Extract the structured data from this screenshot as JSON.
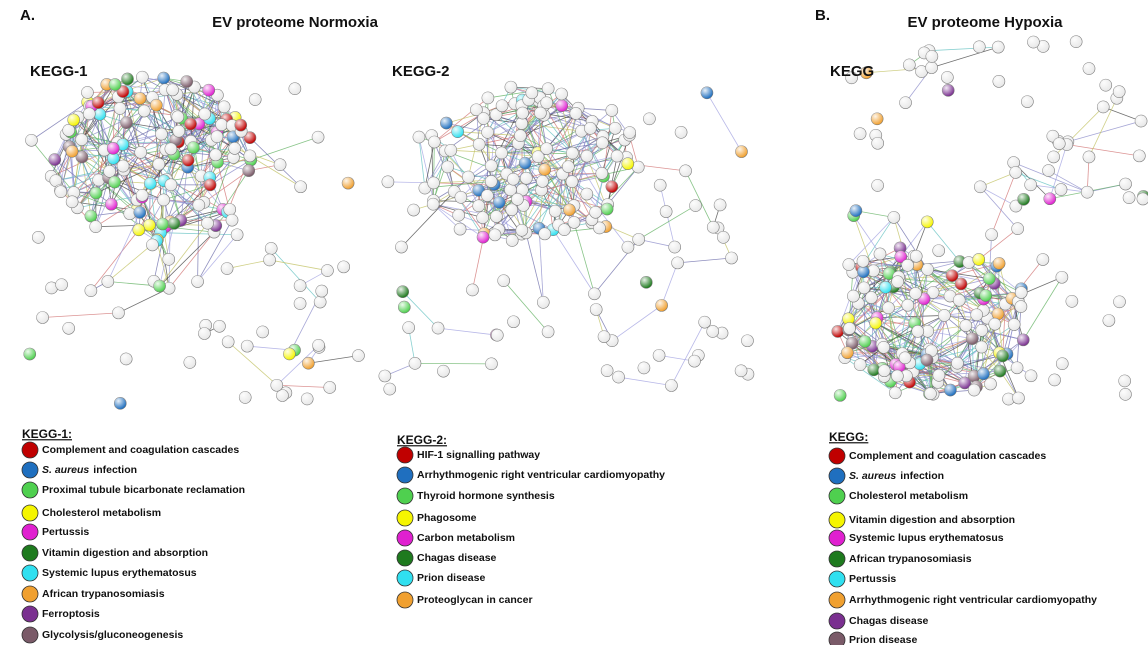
{
  "panels": [
    {
      "label": "A.",
      "title": "EV proteome Normoxia"
    },
    {
      "label": "B.",
      "title": "EV proteome Hypoxia"
    }
  ],
  "networks": [
    {
      "label": "KEGG-1"
    },
    {
      "label": "KEGG-2"
    },
    {
      "label": "KEGG"
    }
  ],
  "legends": [
    {
      "heading": "KEGG-1:",
      "items": [
        {
          "label": "Complement and coagulation cascades",
          "color": "#c00000"
        },
        {
          "italic": "S. aureus",
          "label": "infection",
          "color": "#1f6fbf"
        },
        {
          "label": "Proximal tubule bicarbonate  reclamation",
          "color": "#4fd04f"
        },
        {
          "label": "Cholesterol metabolism",
          "color": "#f5f500"
        },
        {
          "label": "Pertussis",
          "color": "#e020d0"
        },
        {
          "label": "Vitamin digestion and absorption",
          "color": "#1e7a1e"
        },
        {
          "label": "Systemic lupus erythematosus",
          "color": "#30e0f0"
        },
        {
          "label": "African  trypanosomiasis",
          "color": "#f0a030"
        },
        {
          "label": "Ferroptosis",
          "color": "#7a3090"
        },
        {
          "label": "Glycolysis/gluconeogenesis",
          "color": "#7a5a68"
        }
      ]
    },
    {
      "heading": "KEGG-2:",
      "items": [
        {
          "label": "HIF-1 signalling pathway",
          "color": "#c00000"
        },
        {
          "label": "Arrhythmogenic  right ventricular cardiomyopathy",
          "color": "#1f6fbf"
        },
        {
          "label": "Thyroid hormone synthesis",
          "color": "#4fd04f"
        },
        {
          "label": "Phagosome",
          "color": "#f5f500"
        },
        {
          "label": "Carbon  metabolism",
          "color": "#e020d0"
        },
        {
          "label": "Chagas disease",
          "color": "#1e7a1e"
        },
        {
          "label": "Prion disease",
          "color": "#30e0f0"
        },
        {
          "label": "Proteoglycan in cancer",
          "color": "#f0a030"
        }
      ]
    },
    {
      "heading": "KEGG:",
      "items": [
        {
          "label": "Complement and coagulation cascades",
          "color": "#c00000"
        },
        {
          "italic": "S. aureus",
          "label": "infection",
          "color": "#1f6fbf"
        },
        {
          "label": "Cholesterol metabolism",
          "color": "#4fd04f"
        },
        {
          "label": "Vitamin digestion and absorption",
          "color": "#f5f500"
        },
        {
          "label": "Systemic lupus erythematosus",
          "color": "#e020d0"
        },
        {
          "label": "African  trypanosomiasis",
          "color": "#1e7a1e"
        },
        {
          "label": "Pertussis",
          "color": "#30e0f0"
        },
        {
          "label": "Arrhythmogenic  right ventricular cardiomyopathy",
          "color": "#f0a030"
        },
        {
          "label": "Chagas disease",
          "color": "#7a3090"
        },
        {
          "label": "Prion disease",
          "color": "#7a5a68"
        }
      ]
    }
  ]
}
